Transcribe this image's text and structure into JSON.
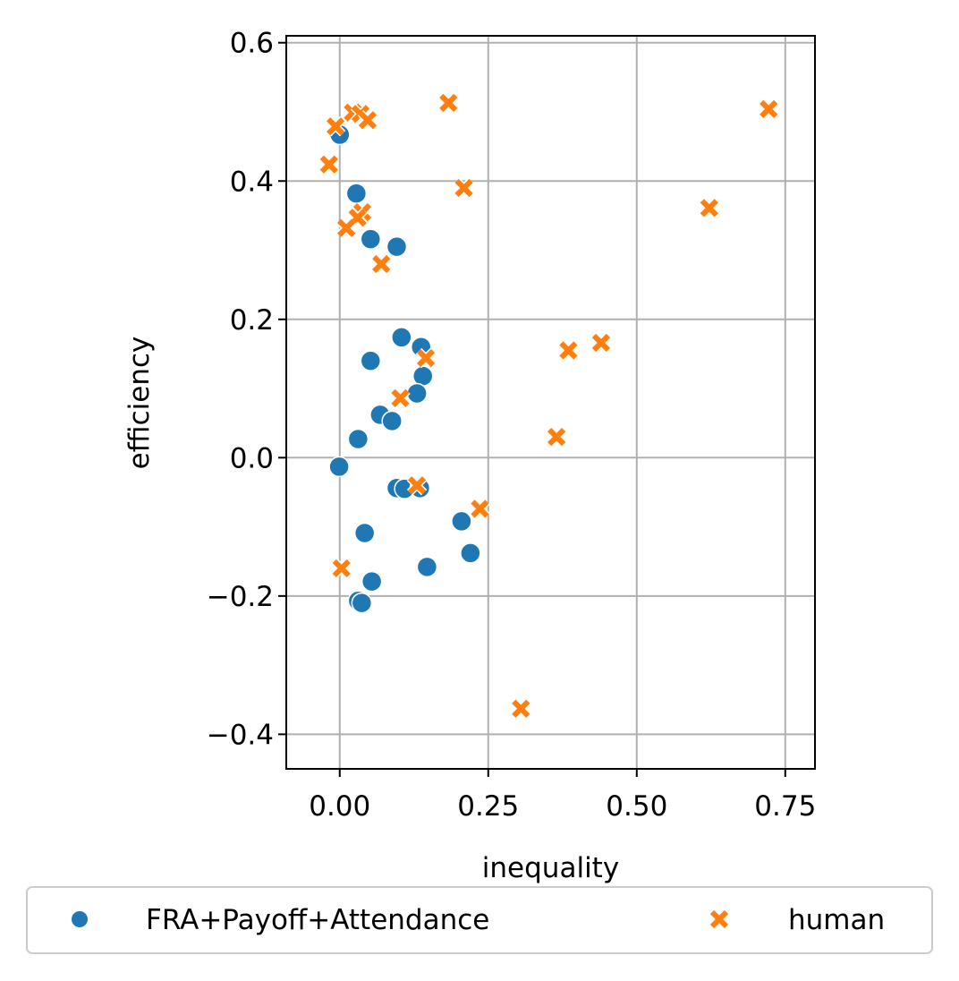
{
  "chart_data": {
    "type": "scatter",
    "title": "",
    "xlabel": "inequality",
    "ylabel": "efficiency",
    "xlim": [
      -0.09,
      0.8
    ],
    "ylim": [
      -0.45,
      0.61
    ],
    "xticks": [
      0.0,
      0.25,
      0.5,
      0.75
    ],
    "xtick_labels": [
      "0.00",
      "0.25",
      "0.50",
      "0.75"
    ],
    "yticks": [
      -0.4,
      -0.2,
      0.0,
      0.2,
      0.4,
      0.6
    ],
    "ytick_labels": [
      "−0.4",
      "−0.2",
      "0.0",
      "0.2",
      "0.4",
      "0.6"
    ],
    "grid": true,
    "legend_position": "bottom, below axes",
    "series": [
      {
        "name": "FRA+Payoff+Attendance",
        "marker": "circle",
        "color": "#1f77b4",
        "points": [
          [
            0.0,
            0.467
          ],
          [
            0.028,
            0.382
          ],
          [
            0.052,
            0.316
          ],
          [
            0.096,
            0.305
          ],
          [
            0.104,
            0.174
          ],
          [
            0.137,
            0.16
          ],
          [
            0.052,
            0.14
          ],
          [
            0.14,
            0.118
          ],
          [
            0.13,
            0.093
          ],
          [
            0.068,
            0.062
          ],
          [
            0.088,
            0.053
          ],
          [
            0.031,
            0.027
          ],
          [
            -0.001,
            -0.013
          ],
          [
            0.096,
            -0.044
          ],
          [
            0.109,
            -0.045
          ],
          [
            0.135,
            -0.044
          ],
          [
            0.205,
            -0.092
          ],
          [
            0.042,
            -0.109
          ],
          [
            0.22,
            -0.138
          ],
          [
            0.147,
            -0.158
          ],
          [
            0.054,
            -0.179
          ],
          [
            0.031,
            -0.207
          ],
          [
            0.037,
            -0.21
          ]
        ]
      },
      {
        "name": "human",
        "marker": "x",
        "color": "#ff7f0e",
        "points": [
          [
            0.183,
            0.513
          ],
          [
            0.722,
            0.504
          ],
          [
            0.022,
            0.499
          ],
          [
            0.035,
            0.497
          ],
          [
            0.047,
            0.488
          ],
          [
            -0.007,
            0.479
          ],
          [
            -0.018,
            0.424
          ],
          [
            0.209,
            0.39
          ],
          [
            0.622,
            0.361
          ],
          [
            0.038,
            0.355
          ],
          [
            0.03,
            0.347
          ],
          [
            0.011,
            0.332
          ],
          [
            0.07,
            0.28
          ],
          [
            0.44,
            0.166
          ],
          [
            0.385,
            0.155
          ],
          [
            0.145,
            0.144
          ],
          [
            0.102,
            0.086
          ],
          [
            0.365,
            0.03
          ],
          [
            0.13,
            -0.04
          ],
          [
            0.236,
            -0.074
          ],
          [
            0.003,
            -0.16
          ],
          [
            0.305,
            -0.363
          ]
        ]
      }
    ]
  }
}
